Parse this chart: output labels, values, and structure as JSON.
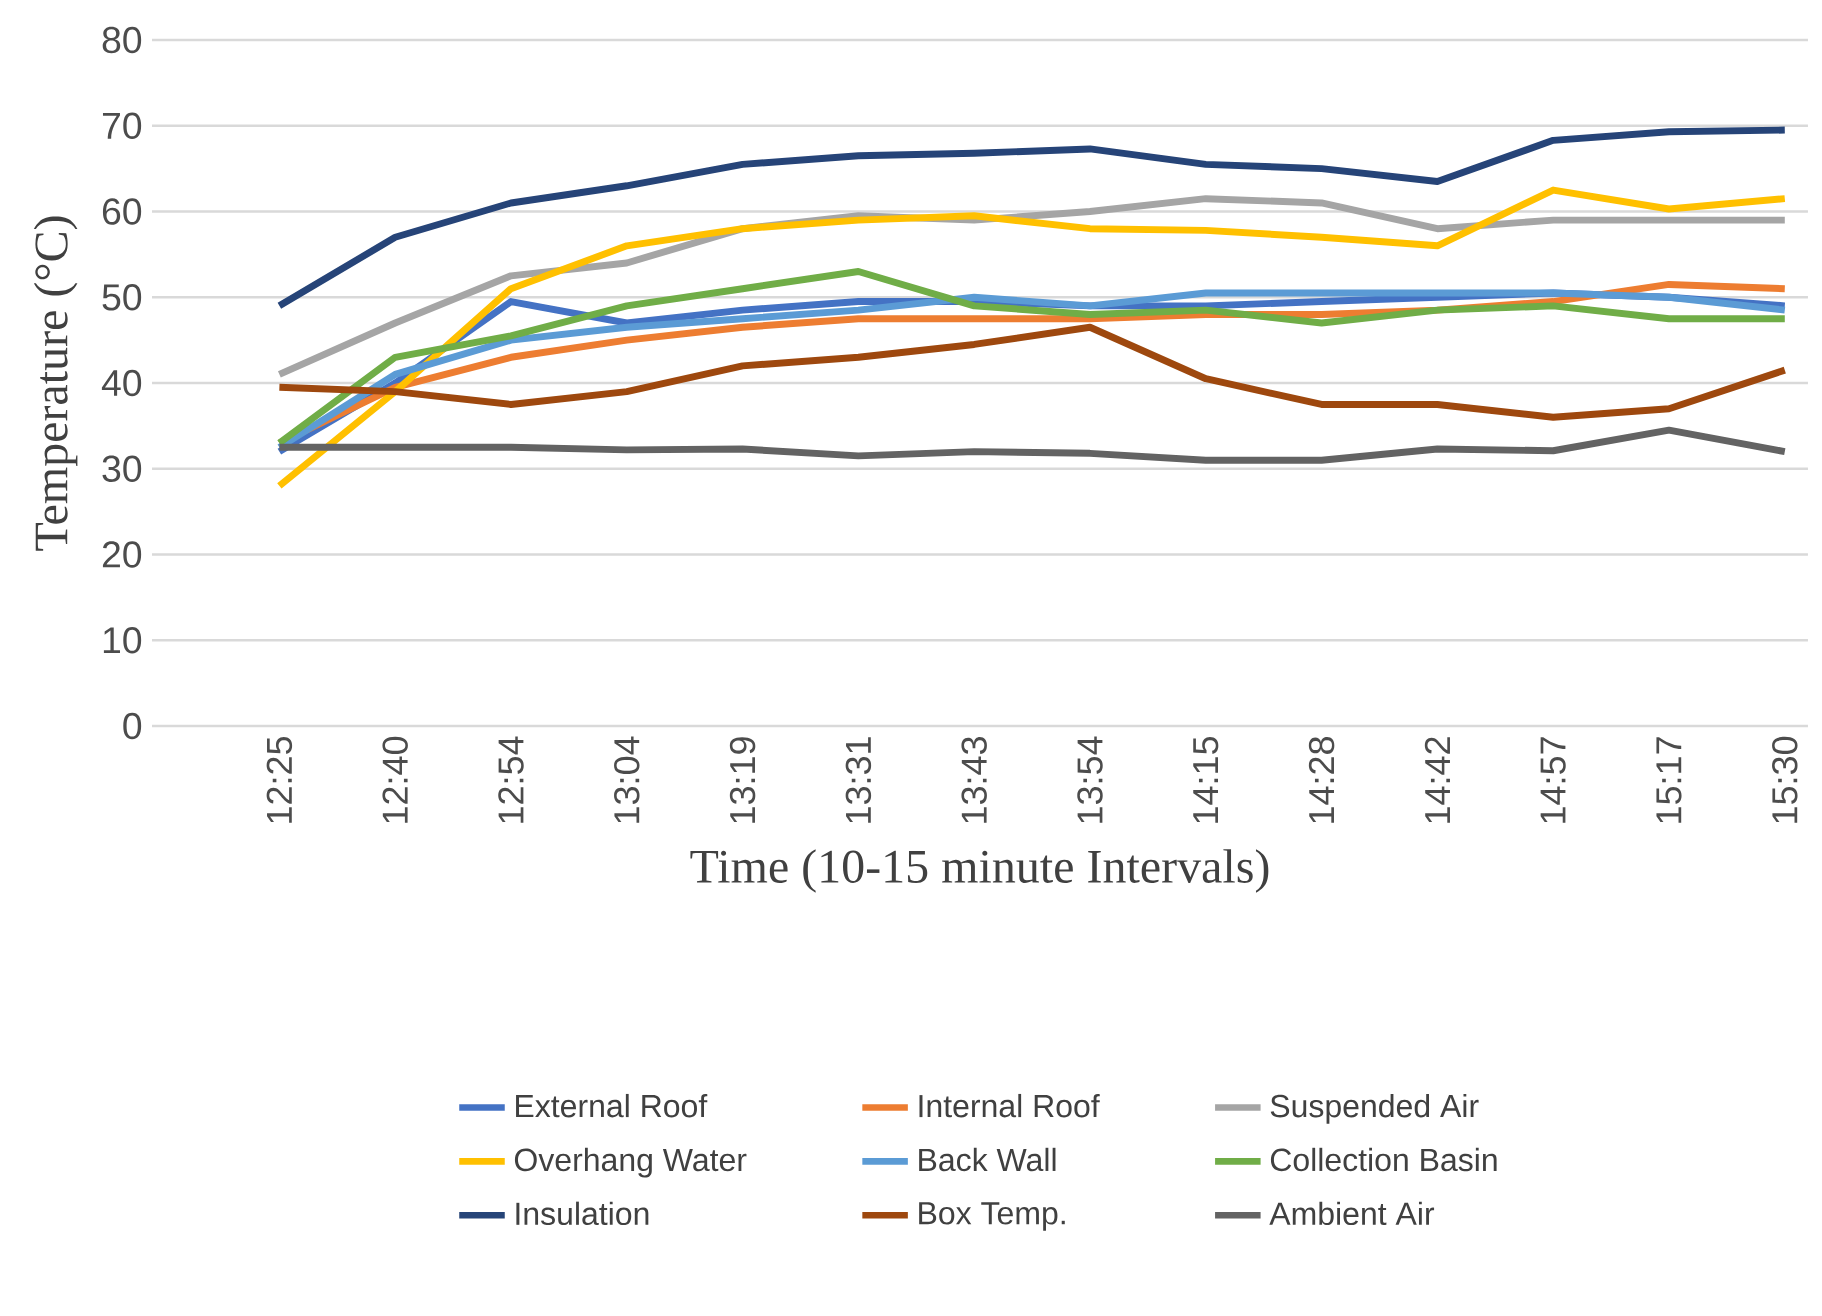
{
  "chart_data": {
    "type": "line",
    "xlabel": "Time (10-15 minute Intervals)",
    "ylabel": "Temperature (°C)",
    "categories": [
      "12:25",
      "12:40",
      "12:54",
      "13:04",
      "13:19",
      "13:31",
      "13:43",
      "13:54",
      "14:15",
      "14:28",
      "14:42",
      "14:57",
      "15:17",
      "15:30"
    ],
    "ylim": [
      0,
      80
    ],
    "yticks": [
      0,
      10,
      20,
      30,
      40,
      50,
      60,
      70,
      80
    ],
    "grid": "y",
    "legend": "bottom",
    "line_style": "solid",
    "series": [
      {
        "name": "External Roof",
        "color": "#4472c4",
        "values": [
          32,
          40,
          49.5,
          47,
          48.5,
          49.5,
          49.5,
          49,
          49,
          49.5,
          50,
          50.5,
          50,
          49
        ]
      },
      {
        "name": "Internal Roof",
        "color": "#ed7d31",
        "values": [
          33,
          39.5,
          43,
          45,
          46.5,
          47.5,
          47.5,
          47.5,
          48,
          48,
          48.5,
          49.5,
          51.5,
          51
        ]
      },
      {
        "name": "Suspended Air",
        "color": "#a5a5a5",
        "values": [
          41,
          47,
          52.5,
          54,
          58,
          59.5,
          59,
          60,
          61.5,
          61,
          58,
          59,
          59,
          59
        ]
      },
      {
        "name": "Overhang Water",
        "color": "#ffc000",
        "values": [
          28,
          39,
          51,
          56,
          58,
          59,
          59.5,
          58,
          57.8,
          57,
          56,
          62.5,
          60.3,
          61.5
        ]
      },
      {
        "name": "Back Wall",
        "color": "#5b9bd5",
        "values": [
          32.5,
          41,
          45,
          46.5,
          47.5,
          48.5,
          50,
          49,
          50.5,
          50.5,
          50.5,
          50.5,
          50,
          48.5
        ]
      },
      {
        "name": "Collection Basin",
        "color": "#70ad47",
        "values": [
          33,
          43,
          45.5,
          49,
          51,
          53,
          49,
          48,
          48.5,
          47,
          48.5,
          49,
          47.5,
          47.5
        ]
      },
      {
        "name": "Insulation",
        "color": "#264478",
        "values": [
          49,
          57,
          61,
          63,
          65.5,
          66.5,
          66.8,
          67.3,
          65.5,
          65,
          63.5,
          68.3,
          69.3,
          69.5
        ]
      },
      {
        "name": "Box Temp.",
        "color": "#9e480e",
        "values": [
          39.5,
          39,
          37.5,
          39,
          42,
          43,
          44.5,
          46.5,
          40.5,
          37.5,
          37.5,
          36,
          37,
          41.5
        ]
      },
      {
        "name": "Ambient Air",
        "color": "#636363",
        "values": [
          32.5,
          32.5,
          32.5,
          32.2,
          32.3,
          31.5,
          32,
          31.8,
          31,
          31,
          32.3,
          32.1,
          34.5,
          32
        ]
      }
    ]
  }
}
